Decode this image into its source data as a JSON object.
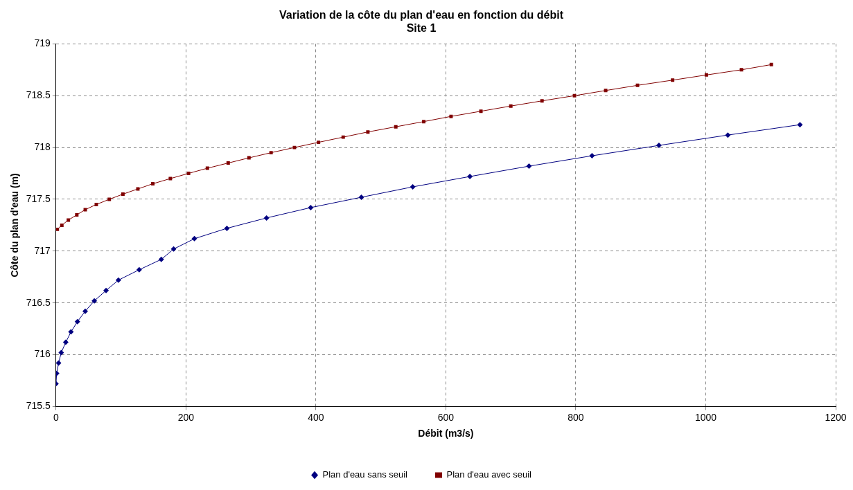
{
  "chart_data": {
    "type": "line",
    "title": "Variation de la côte du plan d'eau en fonction du débit",
    "subtitle": "Site 1",
    "xlabel": "Débit (m3/s)",
    "ylabel": "Côte du plan d'eau (m)",
    "xlim": [
      0,
      1200
    ],
    "xticks": [
      0,
      200,
      400,
      600,
      800,
      1000,
      1200
    ],
    "ylim": [
      715.5,
      719
    ],
    "yticks": [
      715.5,
      716,
      716.5,
      717,
      717.5,
      718,
      718.5,
      719
    ],
    "grid": true,
    "legend": "bottom",
    "line_style": "solid",
    "series": [
      {
        "name": "Plan d'eau sans seuil",
        "color": "#000080",
        "marker": "diamond",
        "x": [
          0,
          1,
          4,
          8,
          15,
          23,
          33,
          45,
          59,
          77,
          96,
          128,
          162,
          181,
          213,
          263,
          324,
          392,
          470,
          549,
          637,
          728,
          825,
          928,
          1034,
          1145
        ],
        "values": [
          715.72,
          715.82,
          715.92,
          716.02,
          716.12,
          716.22,
          716.32,
          716.42,
          716.52,
          716.62,
          716.72,
          716.82,
          716.92,
          717.02,
          717.12,
          717.22,
          717.32,
          717.42,
          717.52,
          717.62,
          717.72,
          717.82,
          717.92,
          718.02,
          718.12,
          718.22
        ]
      },
      {
        "name": "Plan d'eau avec seuil",
        "color": "#800000",
        "marker": "square",
        "x": [
          2,
          9,
          19,
          32,
          45,
          62,
          82,
          103,
          126,
          149,
          176,
          204,
          233,
          265,
          297,
          331,
          367,
          404,
          442,
          480,
          523,
          566,
          608,
          654,
          700,
          748,
          798,
          846,
          895,
          949,
          1001,
          1055,
          1101
        ],
        "values": [
          717.21,
          717.25,
          717.3,
          717.35,
          717.4,
          717.45,
          717.5,
          717.55,
          717.6,
          717.65,
          717.7,
          717.75,
          717.8,
          717.85,
          717.9,
          717.95,
          718,
          718.05,
          718.1,
          718.15,
          718.2,
          718.25,
          718.3,
          718.35,
          718.4,
          718.45,
          718.5,
          718.55,
          718.6,
          718.65,
          718.7,
          718.75,
          718.8
        ]
      }
    ]
  }
}
